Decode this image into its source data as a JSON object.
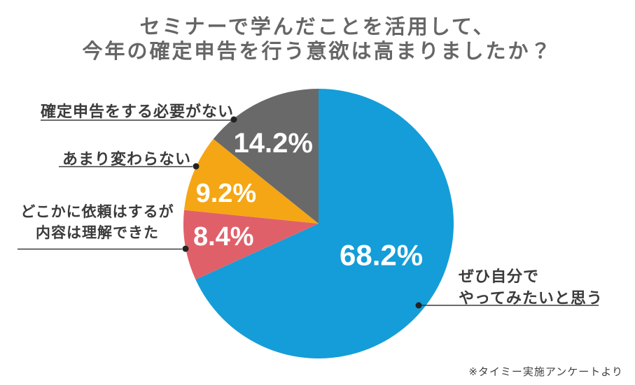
{
  "title": {
    "line1": "セミナーで学んだことを活用して、",
    "line2": "今年の確定申告を行う意欲は高まりましたか？"
  },
  "chart_data": {
    "type": "pie",
    "title": "セミナーで学んだことを活用して、今年の確定申告を行う意欲は高まりましたか？",
    "start_angle_deg": 0,
    "direction": "clockwise",
    "legend_position": "callout-labels",
    "slices": [
      {
        "label": "ぜひ自分でやってみたいと思う",
        "value": 68.2,
        "display": "68.2%",
        "color": "#149DD8"
      },
      {
        "label": "どこかに依頼はするが内容は理解できた",
        "value": 8.4,
        "display": "8.4%",
        "color": "#E0606A"
      },
      {
        "label": "あまり変わらない",
        "value": 9.2,
        "display": "9.2%",
        "color": "#F5A614"
      },
      {
        "label": "確定申告をする必要がない",
        "value": 14.2,
        "display": "14.2%",
        "color": "#696969"
      }
    ]
  },
  "callouts": {
    "need_none": {
      "text": "確定申告をする必要がない"
    },
    "no_change": {
      "text": "あまり変わらない"
    },
    "delegate": {
      "line1": "どこかに依頼はするが",
      "line2": "内容は理解できた"
    },
    "try_myself": {
      "line1": "ぜひ自分で",
      "line2": "やってみたいと思う"
    }
  },
  "footer": {
    "source_note": "※タイミー実施アンケートより"
  }
}
